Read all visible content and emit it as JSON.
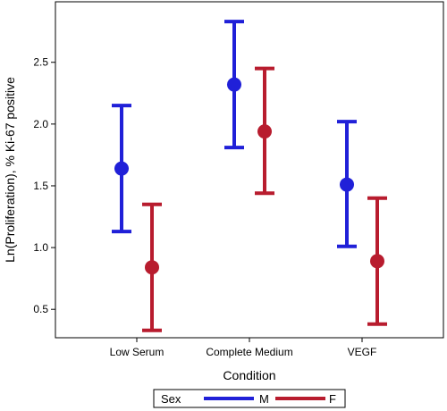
{
  "chart_data": {
    "type": "scatter",
    "subtype": "point-with-error-bars",
    "xlabel": "Condition",
    "ylabel": "Ln(Proliferation), % Ki-67 positive",
    "categories": [
      "Low Serum",
      "Complete Medium",
      "VEGF"
    ],
    "yticks": [
      "0.5",
      "1.0",
      "1.5",
      "2.0",
      "2.5"
    ],
    "ytick_values": [
      0.5,
      1.0,
      1.5,
      2.0,
      2.5
    ],
    "ylim": [
      0.27,
      2.99
    ],
    "grid": false,
    "legend": {
      "title": "Sex",
      "placement": "bottom"
    },
    "series": [
      {
        "name": "M",
        "color": "#2020d8",
        "mean": [
          1.64,
          2.32,
          1.51
        ],
        "lower": [
          1.13,
          1.81,
          1.01
        ],
        "upper": [
          2.15,
          2.83,
          2.02
        ]
      },
      {
        "name": "F",
        "color": "#b81c2e",
        "mean": [
          0.84,
          1.94,
          0.89
        ],
        "lower": [
          0.33,
          1.44,
          0.38
        ],
        "upper": [
          1.35,
          2.45,
          1.4
        ]
      }
    ]
  }
}
